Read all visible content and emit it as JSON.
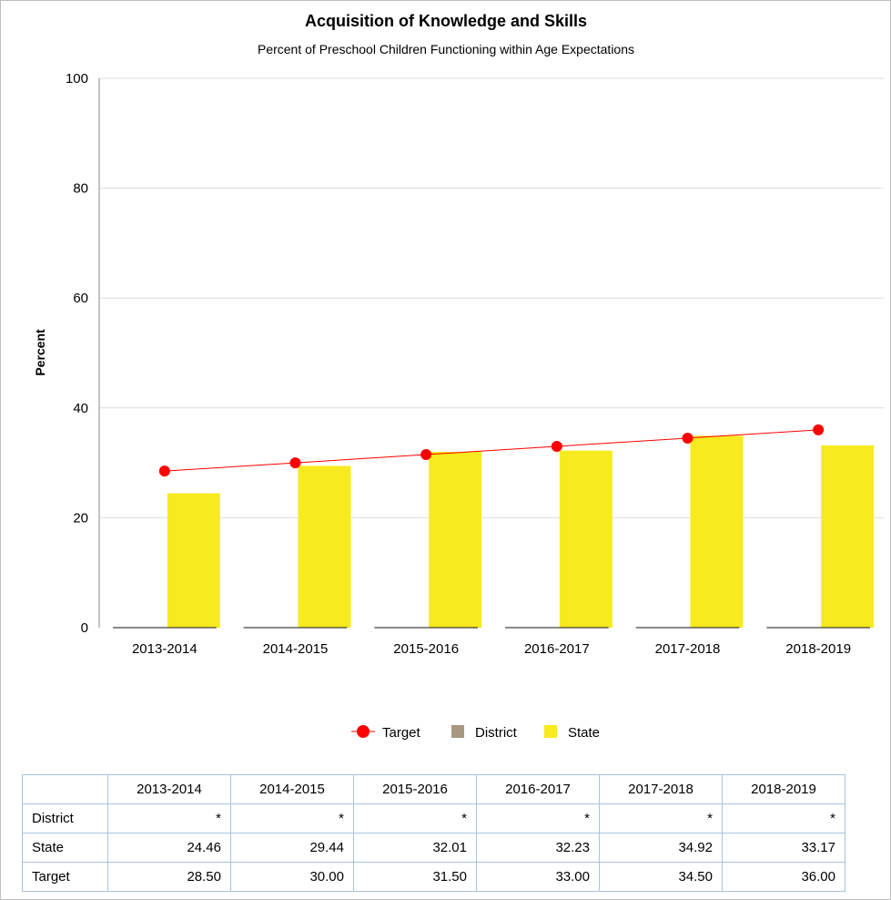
{
  "chart_data": {
    "type": "bar",
    "title": "Acquisition of Knowledge and Skills",
    "subtitle": "Percent of Preschool Children Functioning within Age Expectations",
    "ylabel": "Percent",
    "xlabel": "",
    "ylim": [
      0,
      100
    ],
    "yticks": [
      0,
      20,
      40,
      60,
      80,
      100
    ],
    "grid": true,
    "categories": [
      "2013-2014",
      "2014-2015",
      "2015-2016",
      "2016-2017",
      "2017-2018",
      "2018-2019"
    ],
    "series": [
      {
        "name": "Target",
        "kind": "line",
        "color": "#ff0000",
        "values": [
          28.5,
          30.0,
          31.5,
          33.0,
          34.5,
          36.0
        ]
      },
      {
        "name": "District",
        "kind": "bar",
        "color": "#a89882",
        "values": [
          null,
          null,
          null,
          null,
          null,
          null
        ]
      },
      {
        "name": "State",
        "kind": "bar",
        "color": "#f7ea1f",
        "values": [
          24.46,
          29.44,
          32.01,
          32.23,
          34.92,
          33.17
        ]
      }
    ],
    "legend_position": "bottom-center"
  },
  "table": {
    "headers": [
      "2013-2014",
      "2014-2015",
      "2015-2016",
      "2016-2017",
      "2017-2018",
      "2018-2019"
    ],
    "rows": [
      {
        "label": "District",
        "values": [
          "*",
          "*",
          "*",
          "*",
          "*",
          "*"
        ]
      },
      {
        "label": "State",
        "values": [
          "24.46",
          "29.44",
          "32.01",
          "32.23",
          "34.92",
          "33.17"
        ]
      },
      {
        "label": "Target",
        "values": [
          "28.50",
          "30.00",
          "31.50",
          "33.00",
          "34.50",
          "36.00"
        ]
      }
    ]
  }
}
